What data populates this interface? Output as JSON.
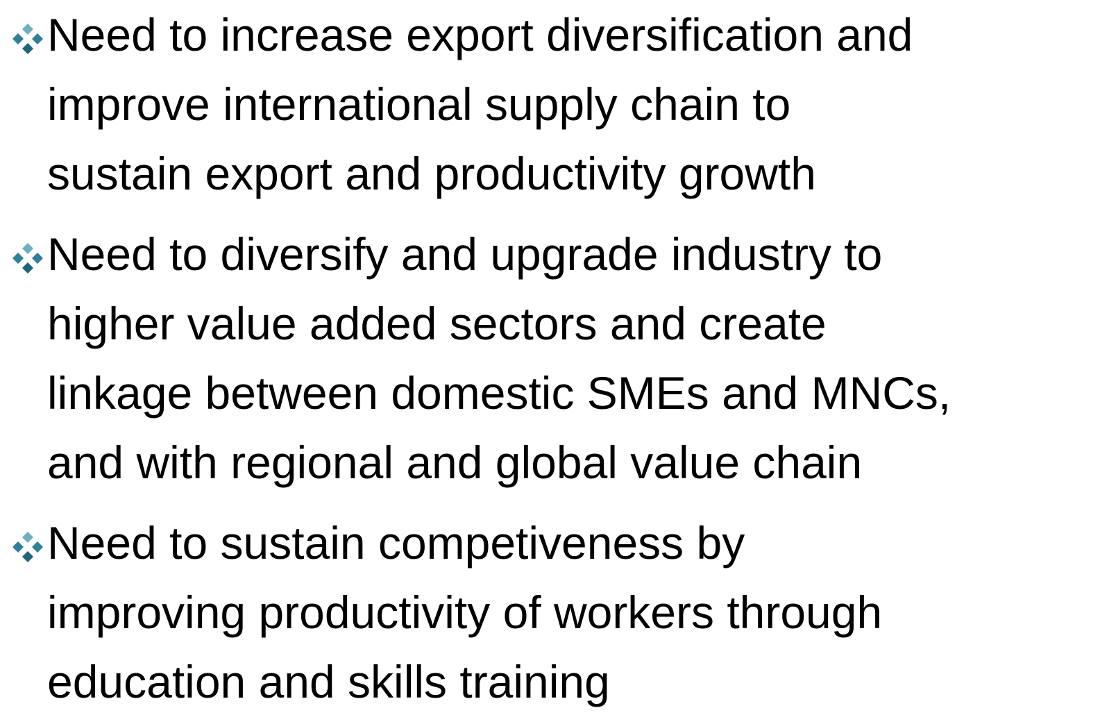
{
  "bullets": [
    {
      "lines": [
        "Need to increase export diversification and",
        "improve international supply chain to",
        "sustain export and productivity growth"
      ]
    },
    {
      "lines": [
        "Need to diversify and upgrade industry to",
        "higher value added sectors and create",
        "linkage between domestic SMEs and MNCs,",
        "and with regional and global value chain"
      ]
    },
    {
      "lines": [
        "Need to sustain competiveness by",
        "improving productivity of workers through",
        "education and skills training"
      ]
    }
  ]
}
